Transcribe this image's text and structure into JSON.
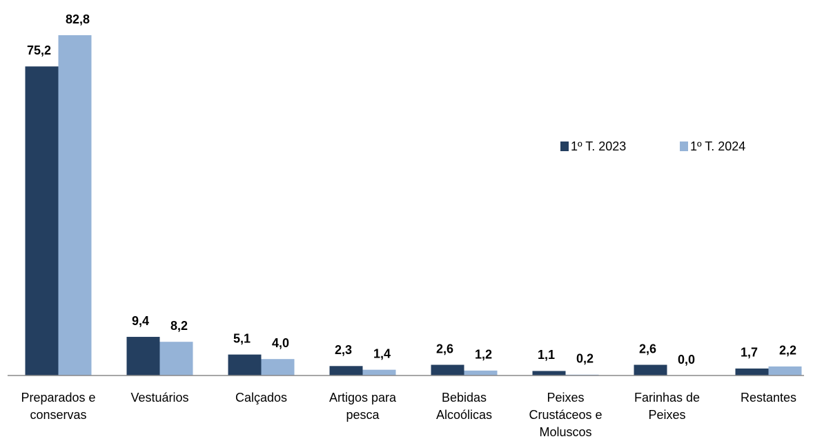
{
  "chart_data": {
    "type": "bar",
    "categories": [
      "Preparados e conservas",
      "Vestuários",
      "Calçados",
      "Artigos para pesca",
      "Bebidas Alcoólicas",
      "Peixes Crustáceos e Moluscos",
      "Farinhas de Peixes",
      "Restantes"
    ],
    "series": [
      {
        "name": "1º T. 2023",
        "color": "#243f60",
        "values": [
          75.2,
          9.4,
          5.1,
          2.3,
          2.6,
          1.1,
          2.6,
          1.7
        ],
        "value_labels": [
          "75,2",
          "9,4",
          "5,1",
          "2,3",
          "2,6",
          "1,1",
          "2,6",
          "1,7"
        ]
      },
      {
        "name": "1º T. 2024",
        "color": "#95b3d7",
        "values": [
          82.8,
          8.2,
          4.0,
          1.4,
          1.2,
          0.2,
          0.0,
          2.2
        ],
        "value_labels": [
          "82,8",
          "8,2",
          "4,0",
          "1,4",
          "1,2",
          "0,2",
          "0,0",
          "2,2"
        ]
      }
    ],
    "legend": "right"
  }
}
